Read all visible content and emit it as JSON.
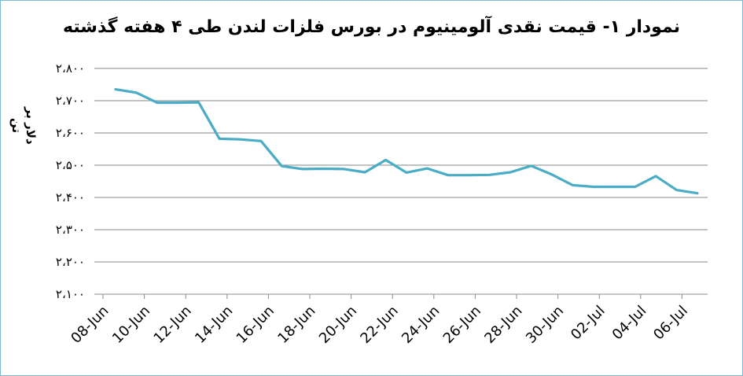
{
  "chart_data": {
    "type": "line",
    "title": "نمودار ۱- قیمت نقدی آلومینیوم در بورس فلزات لندن طی ۴ هفته گذشته",
    "xlabel": "",
    "ylabel": "دلار بر تن",
    "ylim": [
      2100,
      2800
    ],
    "yticks": [
      2100,
      2200,
      2300,
      2400,
      2500,
      2600,
      2700,
      2800
    ],
    "ytick_labels": [
      "۲،۱۰۰",
      "۲،۲۰۰",
      "۲،۳۰۰",
      "۲،۴۰۰",
      "۲،۵۰۰",
      "۲،۶۰۰",
      "۲،۷۰۰",
      "۲،۸۰۰"
    ],
    "xtick_labels": [
      "08-Jun",
      "10-Jun",
      "12-Jun",
      "14-Jun",
      "16-Jun",
      "18-Jun",
      "20-Jun",
      "22-Jun",
      "24-Jun",
      "26-Jun",
      "28-Jun",
      "30-Jun",
      "02-Jul",
      "04-Jul",
      "06-Jul"
    ],
    "grid": "horizontal",
    "line_color": "#4bacc6",
    "series": [
      {
        "values": [
          2735,
          2725,
          2694,
          2694,
          2695,
          2582,
          2580,
          2575,
          2497,
          2488,
          2489,
          2488,
          2478,
          2516,
          2477,
          2490,
          2469,
          2469,
          2470,
          2478,
          2498,
          2471,
          2438,
          2433,
          2433,
          2433,
          2466,
          2423,
          2413
        ]
      }
    ]
  }
}
